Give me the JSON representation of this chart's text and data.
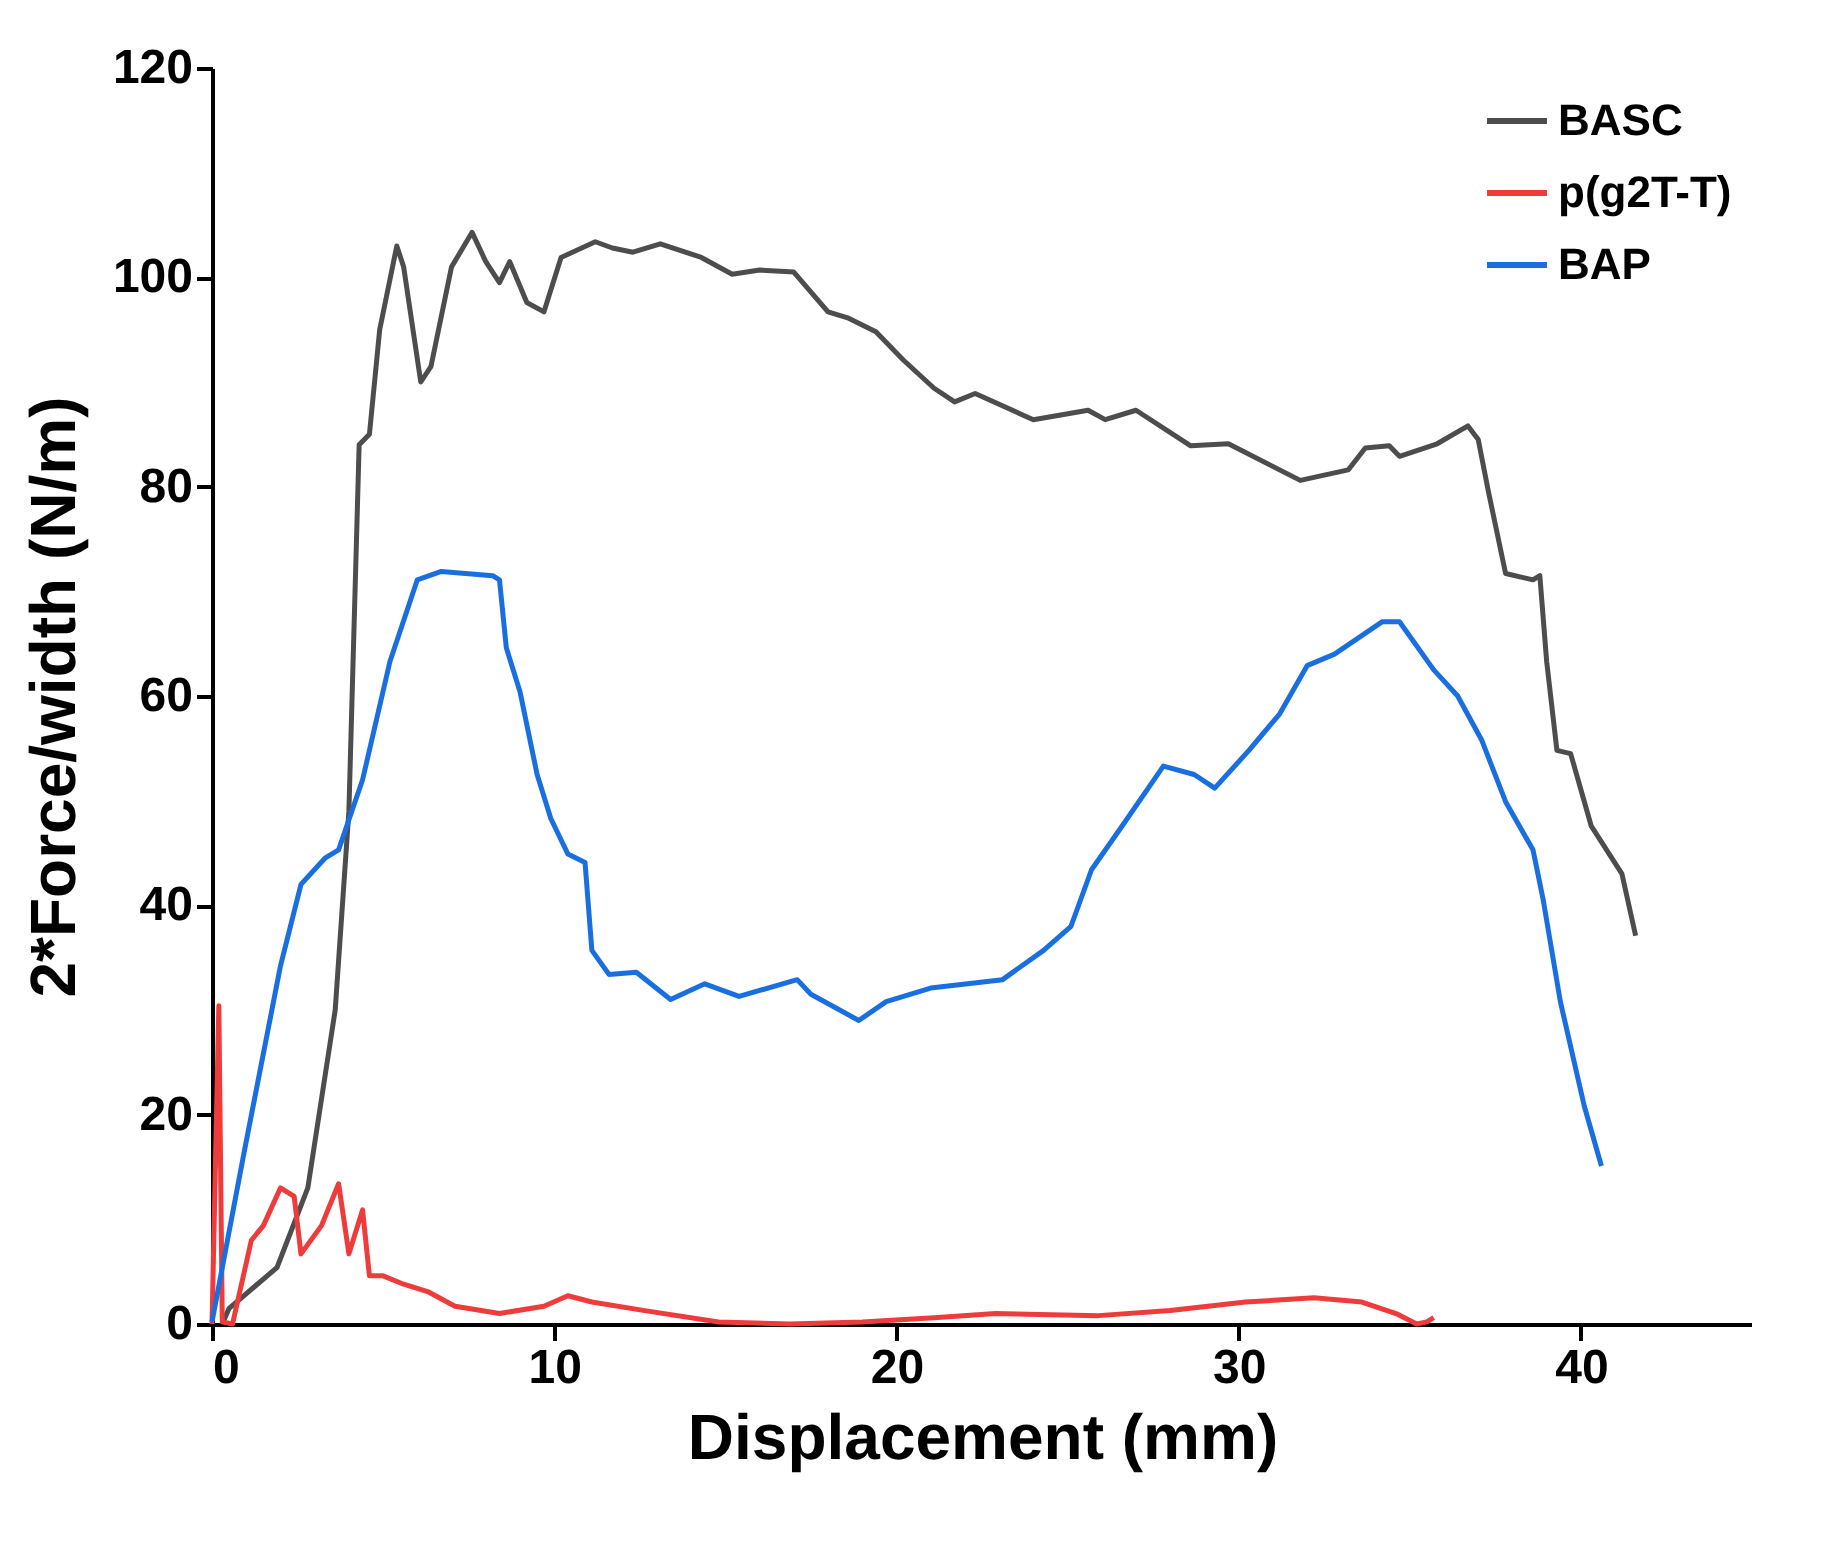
{
  "chart_data": {
    "type": "line",
    "xlabel": "Displacement (mm)",
    "ylabel": "2*Force/width (N/m)",
    "xlim": [
      0,
      45
    ],
    "ylim": [
      0,
      120
    ],
    "xticks": [
      0,
      10,
      20,
      30,
      40
    ],
    "yticks": [
      0,
      20,
      40,
      60,
      80,
      100,
      120
    ],
    "grid": false,
    "legend": "top right",
    "marker": "none",
    "line_style": "solid",
    "series": [
      {
        "name": "BASC",
        "color": "#4d4d4d",
        "x": [
          0.3,
          0.5,
          1.9,
          2.8,
          3.6,
          4,
          4.3,
          4.6,
          4.9,
          5.4,
          5.6,
          6.1,
          6.4,
          7,
          7.6,
          8,
          8.4,
          8.7,
          9.2,
          9.7,
          10.2,
          11.2,
          11.7,
          12.3,
          13.1,
          14.3,
          15.2,
          16,
          17,
          18,
          18.6,
          19.4,
          20.2,
          21.1,
          21.7,
          22.3,
          24,
          25.6,
          26.1,
          27,
          28.6,
          29.7,
          31.8,
          33.2,
          33.7,
          34.4,
          34.7,
          35.8,
          36.7,
          37,
          37.3,
          37.8,
          38.6,
          38.8,
          39,
          39.3,
          39.7,
          40.3,
          41.2,
          41.6
        ],
        "values": [
          0,
          1.5,
          5.4,
          13,
          30,
          49,
          84,
          85,
          95,
          103,
          101,
          90,
          91.5,
          101,
          104.3,
          101.5,
          99.5,
          101.5,
          97.6,
          96.7,
          101.9,
          103.4,
          102.8,
          102.4,
          103.2,
          101.9,
          100.3,
          100.7,
          100.5,
          96.7,
          96.1,
          94.8,
          92.1,
          89.4,
          88.1,
          88.9,
          86.4,
          87.3,
          86.4,
          87.3,
          83.9,
          84.1,
          80.6,
          81.6,
          83.7,
          83.9,
          82.9,
          84.1,
          85.8,
          84.5,
          79.5,
          71.7,
          71.1,
          71.5,
          63.3,
          54.8,
          54.5,
          47.6,
          43,
          37.1
        ]
      },
      {
        "name": "p(g2T-T)",
        "color": "#ee3b3b",
        "x": [
          0,
          0.2,
          0.3,
          0.6,
          1.15,
          1.5,
          2,
          2.4,
          2.6,
          3.2,
          3.7,
          4,
          4.4,
          4.6,
          5,
          5.6,
          6.3,
          7.1,
          8.4,
          9.7,
          10.4,
          11.1,
          12.6,
          14.8,
          16.9,
          19,
          21.1,
          22.9,
          25.9,
          28,
          30.2,
          32.2,
          33.6,
          34.6,
          35.2,
          35.5,
          35.7
        ],
        "values": [
          0,
          30.4,
          0.2,
          0,
          8,
          9.4,
          13,
          12.2,
          6.7,
          9.4,
          13.4,
          6.7,
          10.9,
          4.6,
          4.6,
          3.8,
          3.1,
          1.7,
          1,
          1.7,
          2.7,
          2.1,
          1.3,
          0.2,
          0,
          0.2,
          0.6,
          1,
          0.8,
          1.3,
          2.1,
          2.5,
          2.1,
          1,
          0,
          0.2,
          0.6
        ]
      },
      {
        "name": "BAP",
        "color": "#1a6fe0",
        "x": [
          0,
          0.95,
          2,
          2.6,
          3.3,
          3.7,
          4.4,
          5.2,
          6,
          6.7,
          8.2,
          8.4,
          8.6,
          9,
          9.5,
          9.9,
          10.4,
          10.9,
          11.1,
          11.6,
          12.4,
          13.4,
          14.4,
          15.4,
          17.1,
          17.5,
          18.9,
          19.7,
          21,
          23.1,
          24.3,
          25.1,
          25.7,
          26.6,
          27.8,
          28.7,
          29.3,
          30.3,
          31.2,
          32,
          32.8,
          34.2,
          34.7,
          35.7,
          36.4,
          37.1,
          37.8,
          38.6,
          38.9,
          39.4,
          40.1,
          40.6
        ],
        "values": [
          0.2,
          16.6,
          34.2,
          42,
          44.5,
          45.3,
          52,
          63.3,
          71.1,
          71.9,
          71.5,
          71.1,
          64.6,
          60.4,
          52.5,
          48.3,
          44.9,
          44.1,
          35.7,
          33.4,
          33.6,
          31,
          32.5,
          31.3,
          32.9,
          31.5,
          29,
          30.8,
          32.1,
          32.9,
          35.7,
          38,
          43.4,
          47.6,
          53.3,
          52.5,
          51.2,
          54.8,
          58.3,
          62.9,
          64,
          67.1,
          67.1,
          62.5,
          60,
          55.8,
          49.9,
          45.3,
          40.5,
          30.8,
          20.8,
          15.1
        ]
      }
    ]
  }
}
